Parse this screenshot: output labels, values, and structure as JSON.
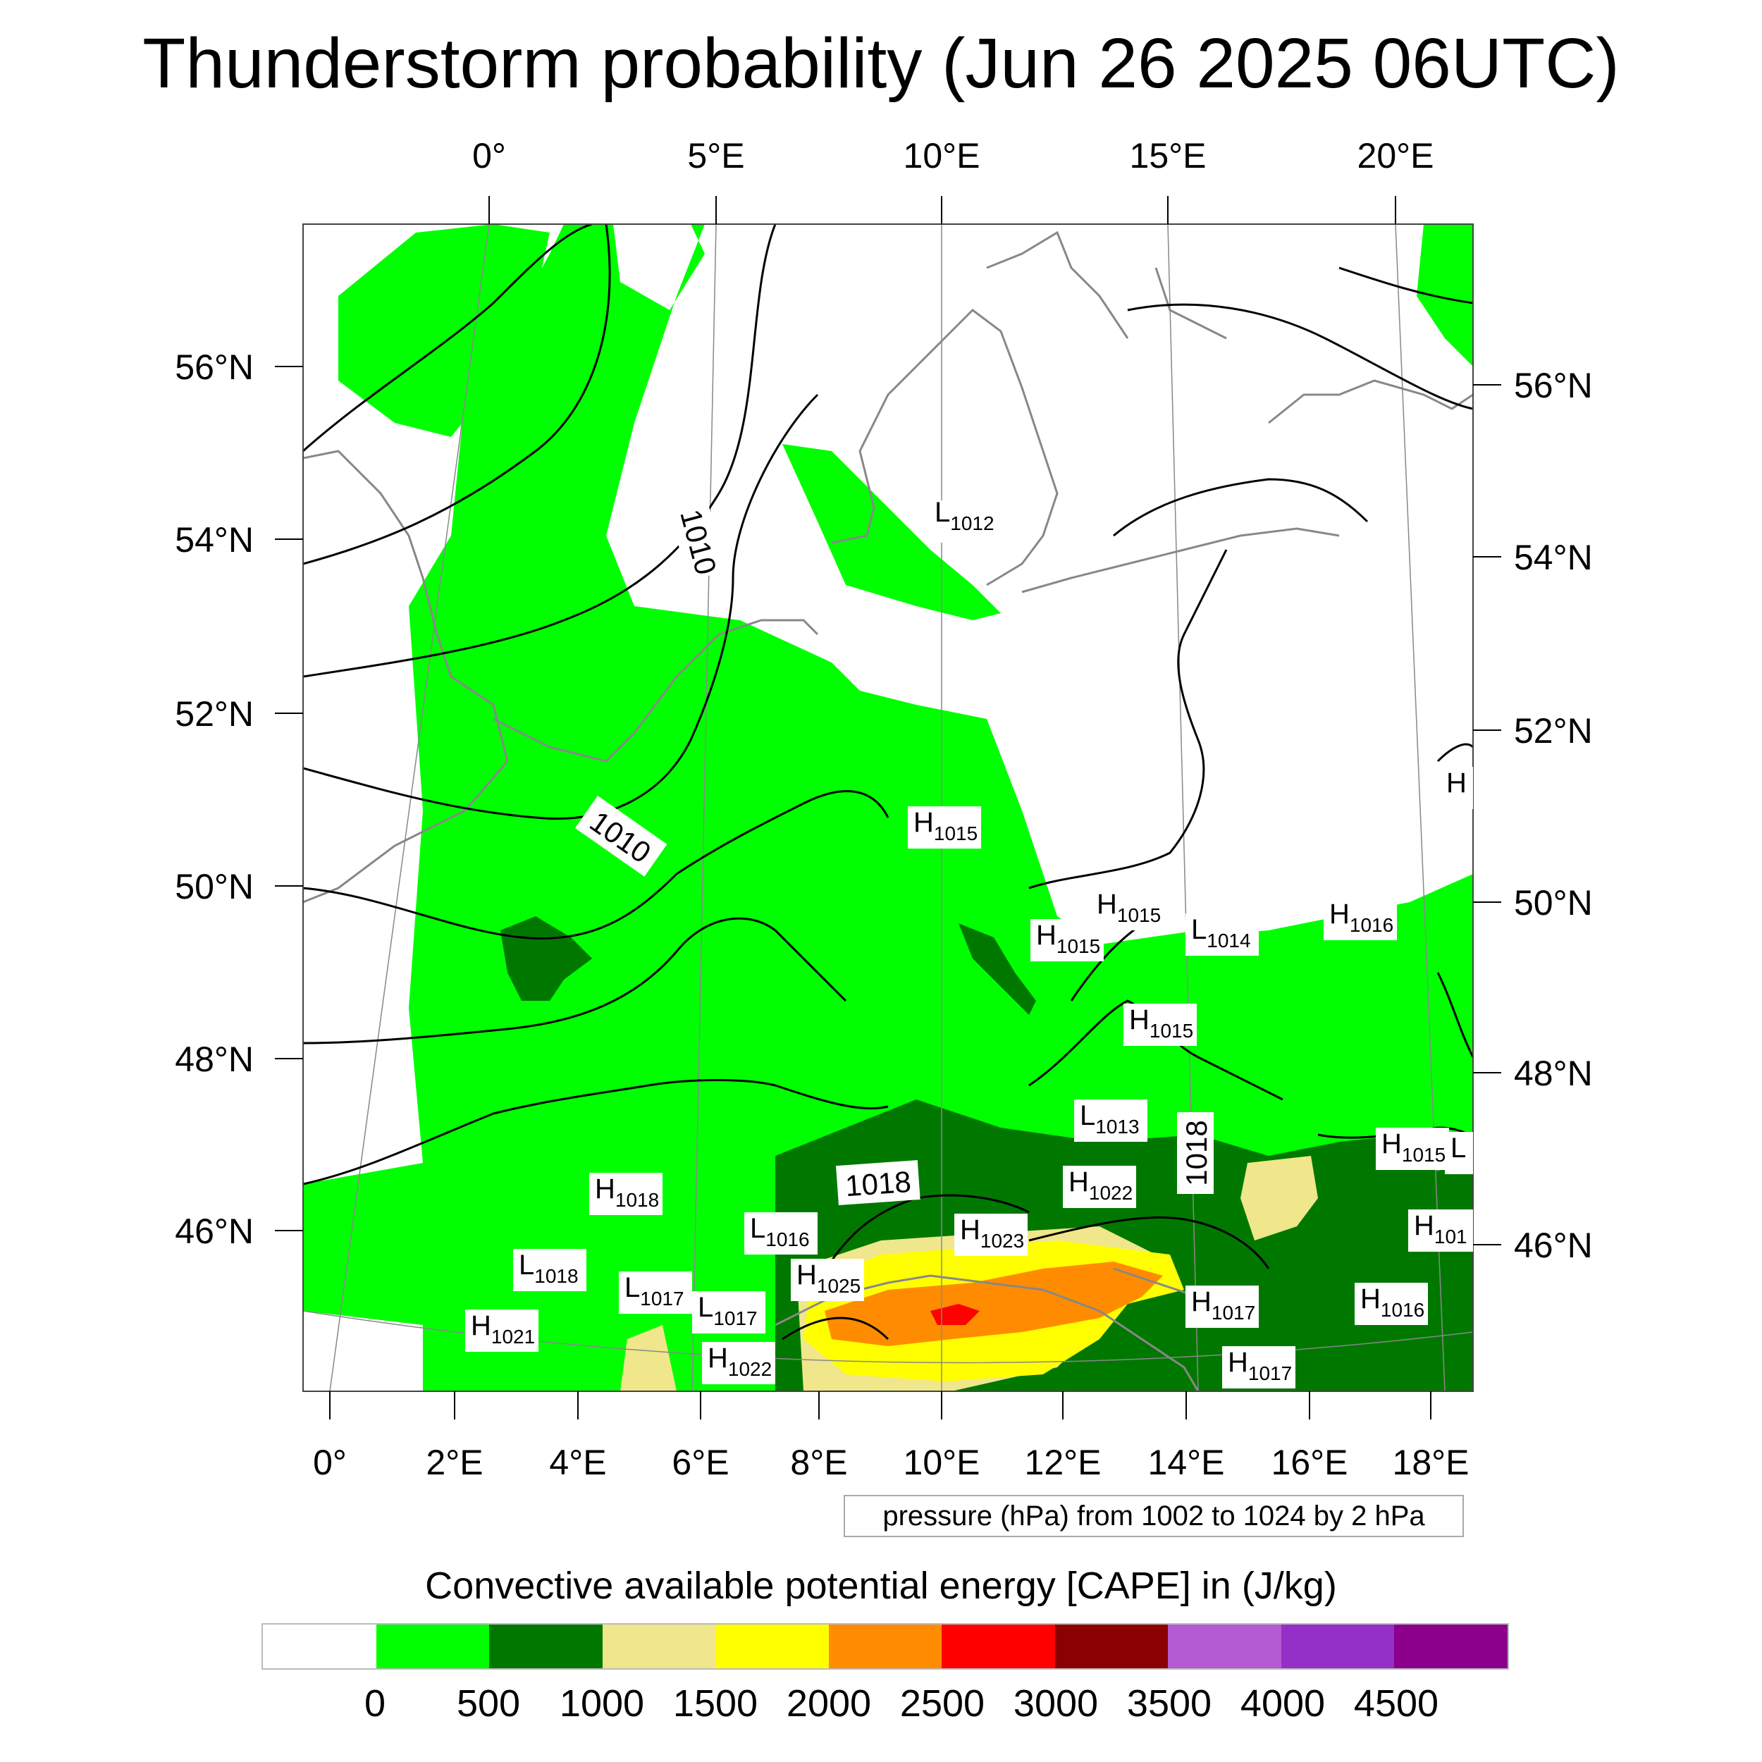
{
  "title": "Thunderstorm probability (Jun 26 2025 06UTC)",
  "top_axis_labels": [
    "0°",
    "5°E",
    "10°E",
    "15°E",
    "20°E"
  ],
  "bottom_axis_labels": [
    "0°",
    "2°E",
    "4°E",
    "6°E",
    "8°E",
    "10°E",
    "12°E",
    "14°E",
    "16°E",
    "18°E"
  ],
  "left_axis_labels": [
    "56°N",
    "54°N",
    "52°N",
    "50°N",
    "48°N",
    "46°N"
  ],
  "right_axis_labels": [
    "56°N",
    "54°N",
    "52°N",
    "50°N",
    "48°N",
    "46°N"
  ],
  "isobar_labels": [
    "1010",
    "1010",
    "1018",
    "1018"
  ],
  "pressure_centers": [
    {
      "type": "L",
      "value": "1012"
    },
    {
      "type": "H",
      "value": "1015"
    },
    {
      "type": "H",
      "value": "1015"
    },
    {
      "type": "L",
      "value": "1014"
    },
    {
      "type": "H",
      "value": "1016"
    },
    {
      "type": "H",
      "value": "1015"
    },
    {
      "type": "H",
      "value": "1015"
    },
    {
      "type": "L",
      "value": "1013"
    },
    {
      "type": "H",
      "value": "1022"
    },
    {
      "type": "H",
      "value": "1015"
    },
    {
      "type": "H",
      "value": "1018"
    },
    {
      "type": "L",
      "value": "1016"
    },
    {
      "type": "H",
      "value": "1023"
    },
    {
      "type": "H",
      "value": "1025"
    },
    {
      "type": "L",
      "value": "1018"
    },
    {
      "type": "L",
      "value": "1017"
    },
    {
      "type": "L",
      "value": "1017"
    },
    {
      "type": "H",
      "value": "1017"
    },
    {
      "type": "H",
      "value": "1016"
    },
    {
      "type": "H",
      "value": "1021"
    },
    {
      "type": "H",
      "value": "1022"
    },
    {
      "type": "H",
      "value": "1017"
    },
    {
      "type": "H",
      "value": "101"
    },
    {
      "type": "L",
      "value": ""
    },
    {
      "type": "H",
      "value": ""
    }
  ],
  "pressure_note": "pressure (hPa) from 1002 to 1024 by 2 hPa",
  "colorbar": {
    "title": "Convective available potential energy [CAPE] in (J/kg)",
    "colors": [
      "#ffffff",
      "#00ff00",
      "#007800",
      "#f0e68c",
      "#ffff00",
      "#ff8c00",
      "#ff0000",
      "#8b0000",
      "#b45ad2",
      "#9430c8",
      "#8b008b"
    ],
    "ticks": [
      "0",
      "500",
      "1000",
      "1500",
      "2000",
      "2500",
      "3000",
      "3500",
      "4000",
      "4500"
    ]
  },
  "cape_colors": {
    "none": "#ffffff",
    "low": "#00ff00",
    "mid": "#007800",
    "khaki": "#f0e68c",
    "yellow": "#ffff00",
    "orange": "#ff8c00",
    "red": "#ff0000"
  }
}
